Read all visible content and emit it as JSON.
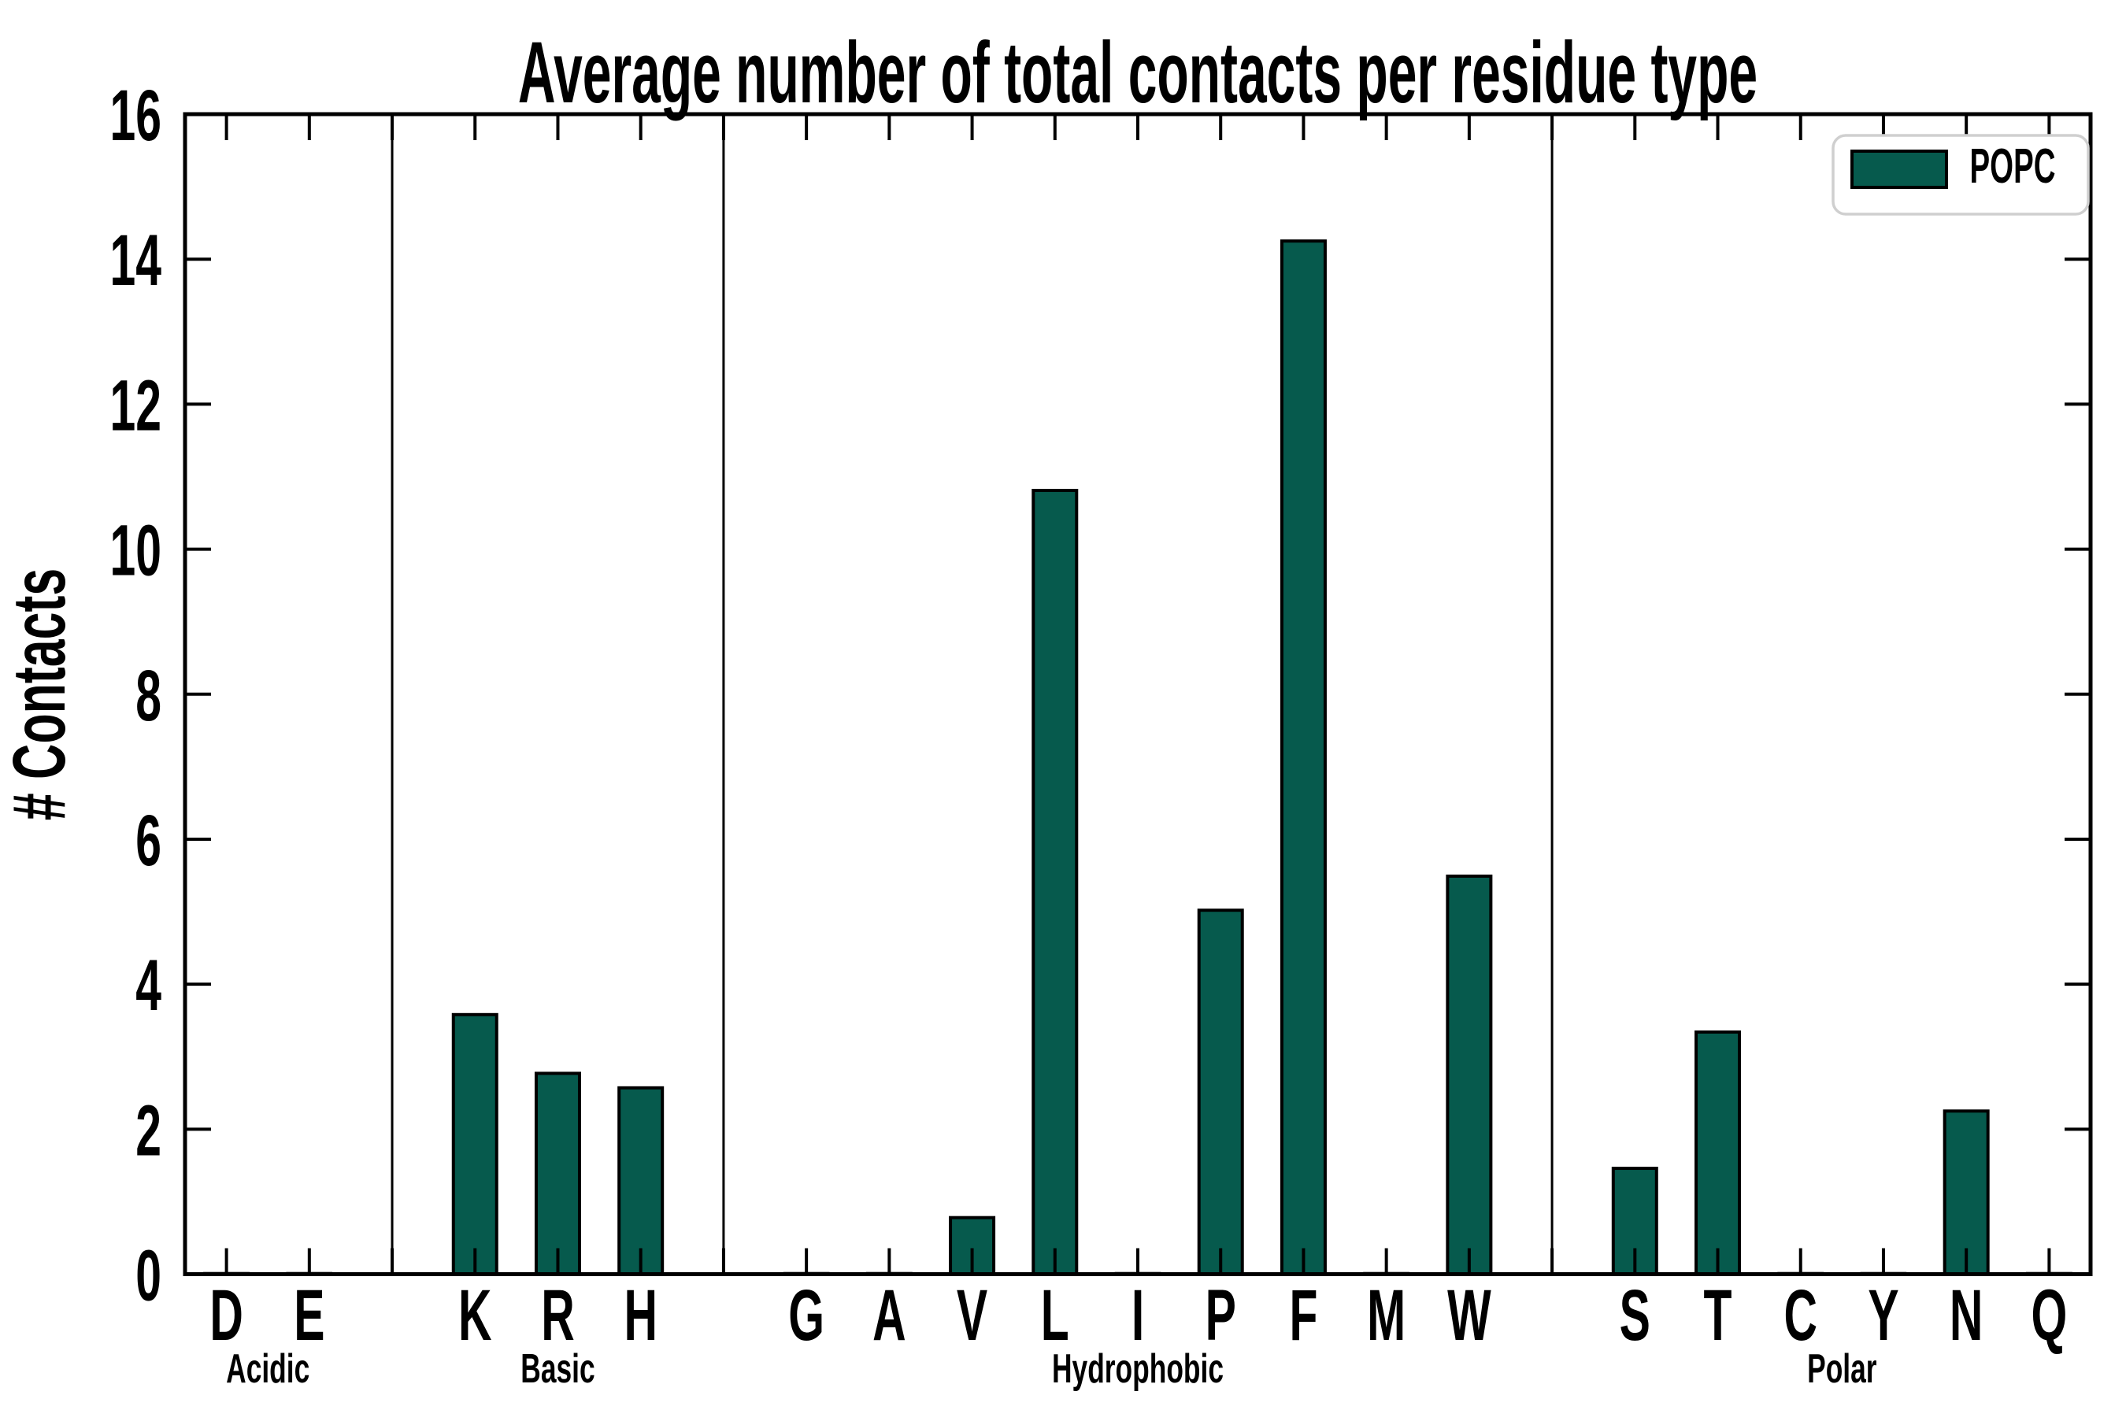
{
  "chart_data": {
    "type": "bar",
    "title": "Average number of total contacts per residue type",
    "ylabel": "# Contacts",
    "xlabel": "",
    "ylim": [
      0,
      16
    ],
    "yticks": [
      0,
      2,
      4,
      6,
      8,
      10,
      12,
      14,
      16
    ],
    "grid": false,
    "group_dividers": true,
    "bar_color": "#065A4D",
    "bar_edge_color": "#000000",
    "background_color": "#ffffff",
    "legend": {
      "position": "upper right",
      "entries": [
        {
          "label": "POPC",
          "color": "#065A4D"
        }
      ]
    },
    "groups": [
      {
        "label": "Acidic",
        "categories": [
          "D",
          "E"
        ],
        "values": [
          0,
          0
        ]
      },
      {
        "label": "Basic",
        "categories": [
          "K",
          "R",
          "H"
        ],
        "values": [
          3.58,
          2.77,
          2.57
        ]
      },
      {
        "label": "Hydrophobic",
        "categories": [
          "G",
          "A",
          "V",
          "L",
          "I",
          "P",
          "F",
          "M",
          "W"
        ],
        "values": [
          0,
          0,
          0.78,
          10.81,
          0,
          5.02,
          14.25,
          0,
          5.49
        ]
      },
      {
        "label": "Polar",
        "categories": [
          "S",
          "T",
          "C",
          "Y",
          "N",
          "Q"
        ],
        "values": [
          1.46,
          3.34,
          0,
          0,
          2.25,
          0
        ]
      }
    ]
  }
}
